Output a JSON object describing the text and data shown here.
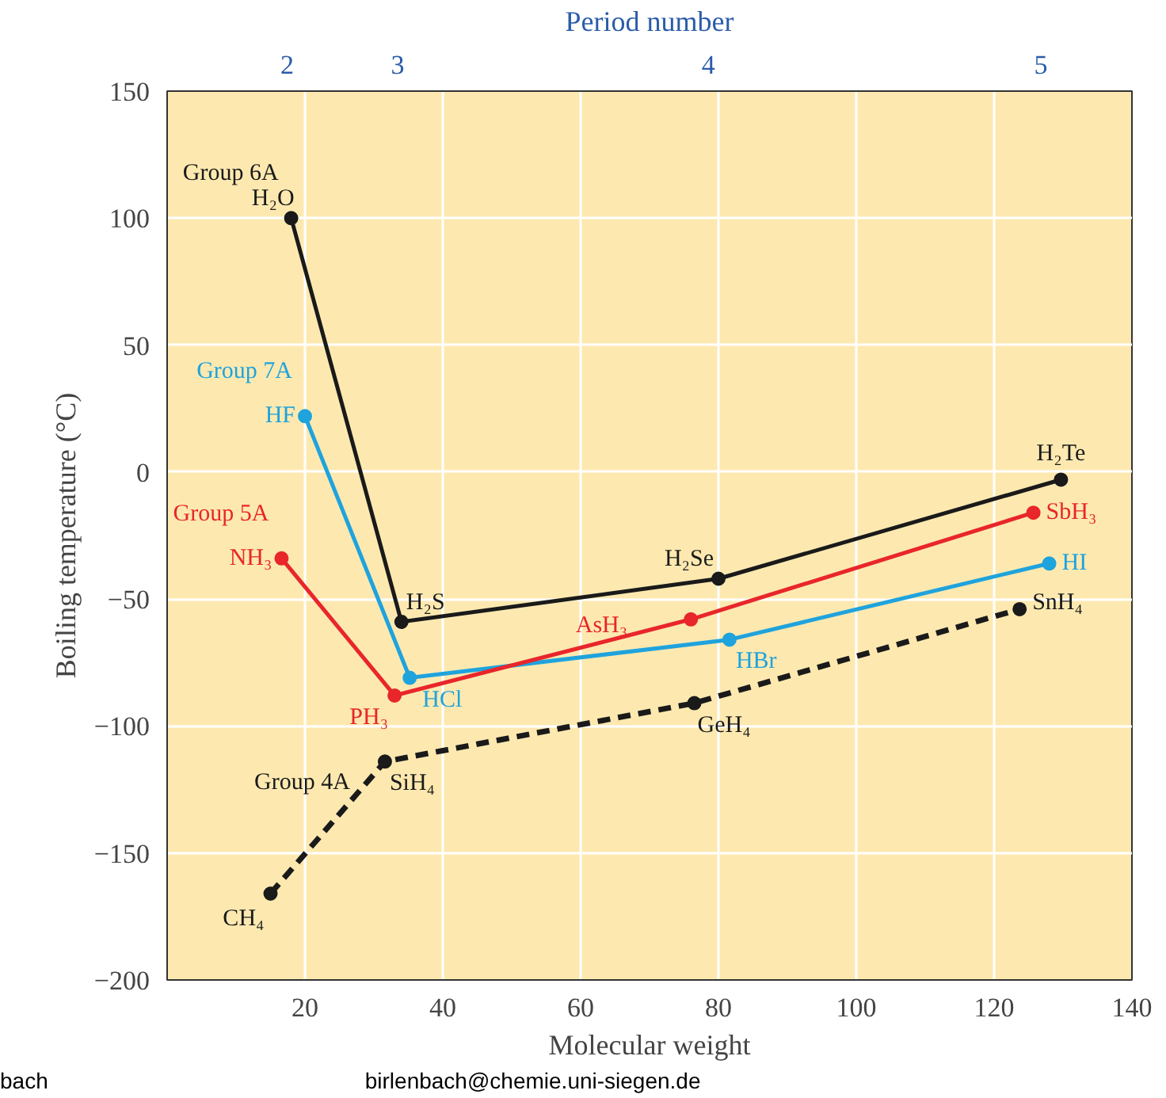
{
  "chart_data": {
    "type": "line",
    "xlabel": "Molecular weight",
    "ylabel": "Boiling temperature (°C)",
    "x2label": "Period number",
    "xlim": [
      0,
      140
    ],
    "xticks": [
      20,
      40,
      60,
      80,
      100,
      120,
      140
    ],
    "ylim": [
      -200,
      150
    ],
    "yticks": [
      {
        "value": -200,
        "label": "−200"
      },
      {
        "value": -150,
        "label": "−150"
      },
      {
        "value": -100,
        "label": "−100"
      },
      {
        "value": -50,
        "label": "−50"
      },
      0,
      50,
      100,
      150
    ],
    "grid": true,
    "marker": "circle",
    "series": [
      {
        "name": "Group 6A",
        "color": "#1a1a1a",
        "line_style": "solid",
        "x": [
          18,
          34,
          80,
          129.7
        ],
        "values": [
          100,
          -59,
          -42,
          -3
        ]
      },
      {
        "name": "Group 7A",
        "color": "#1fa3dd",
        "line_style": "solid",
        "x": [
          20,
          35.2,
          81.6,
          128
        ],
        "values": [
          22,
          -81,
          -66,
          -36
        ]
      },
      {
        "name": "Group 5A",
        "color": "#e8262b",
        "line_style": "solid",
        "x": [
          16.6,
          33,
          76,
          125.7
        ],
        "values": [
          -34,
          -88,
          -58,
          -16
        ]
      },
      {
        "name": "Group 4A",
        "color": "#1a1a1a",
        "line_style": "dashed",
        "x": [
          15,
          31.6,
          76.5,
          123.7
        ],
        "values": [
          -166,
          -114,
          -91,
          -54
        ]
      }
    ],
    "annotations": [
      {
        "text": "H₂O",
        "x": 18,
        "y": 100
      },
      {
        "text": "H₂S",
        "x": 34,
        "y": -59
      },
      {
        "text": "H₂Se",
        "x": 80,
        "y": -42
      },
      {
        "text": "H₂Te",
        "x": 129.7,
        "y": -3
      },
      {
        "text": "HF",
        "x": 20,
        "y": 22
      },
      {
        "text": "HCl",
        "x": 35.2,
        "y": -81
      },
      {
        "text": "HBr",
        "x": 81.6,
        "y": -66
      },
      {
        "text": "HI",
        "x": 128,
        "y": -36
      },
      {
        "text": "NH₃",
        "x": 16.6,
        "y": -34
      },
      {
        "text": "PH₃",
        "x": 33,
        "y": -88
      },
      {
        "text": "AsH₃",
        "x": 76,
        "y": -58
      },
      {
        "text": "SbH₃",
        "x": 125.7,
        "y": -16
      },
      {
        "text": "CH₄",
        "x": 15,
        "y": -166
      },
      {
        "text": "SiH₄",
        "x": 31.6,
        "y": -114
      },
      {
        "text": "GeH₄",
        "x": 76.5,
        "y": -91
      },
      {
        "text": "SnH₄",
        "x": 123.7,
        "y": -54
      },
      "2",
      "3",
      "4",
      "5",
      "bach",
      "birlenbach@chemie.uni-siegen.de"
    ]
  }
}
